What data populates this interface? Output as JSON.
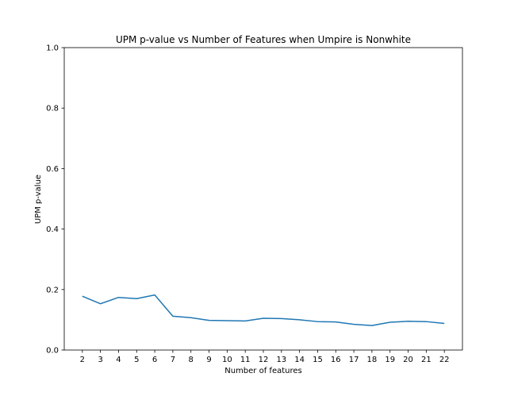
{
  "colors": {
    "background": "#ffffff",
    "line": "#1f77b4",
    "axis": "#000000"
  },
  "chart_data": {
    "type": "line",
    "title": "UPM p-value vs Number of Features when Umpire is Nonwhite",
    "xlabel": "Number of features",
    "ylabel": "UPM p-value",
    "xlim": [
      1,
      23
    ],
    "ylim": [
      0.0,
      1.0
    ],
    "grid": false,
    "legend": "none",
    "x": [
      2,
      3,
      4,
      5,
      6,
      7,
      8,
      9,
      10,
      11,
      12,
      13,
      14,
      15,
      16,
      17,
      18,
      19,
      20,
      21,
      22
    ],
    "x_tick_labels": [
      "2",
      "3",
      "4",
      "5",
      "6",
      "7",
      "8",
      "9",
      "10",
      "11",
      "12",
      "13",
      "14",
      "15",
      "16",
      "17",
      "18",
      "19",
      "20",
      "21",
      "22"
    ],
    "y_ticks": [
      0.0,
      0.2,
      0.4,
      0.6,
      0.8,
      1.0
    ],
    "y_tick_labels": [
      "0.0",
      "0.2",
      "0.4",
      "0.6",
      "0.8",
      "1.0"
    ],
    "series": [
      {
        "values": [
          0.178,
          0.153,
          0.174,
          0.17,
          0.182,
          0.112,
          0.107,
          0.098,
          0.097,
          0.096,
          0.105,
          0.104,
          0.1,
          0.094,
          0.093,
          0.085,
          0.081,
          0.092,
          0.095,
          0.094,
          0.088
        ]
      }
    ]
  }
}
